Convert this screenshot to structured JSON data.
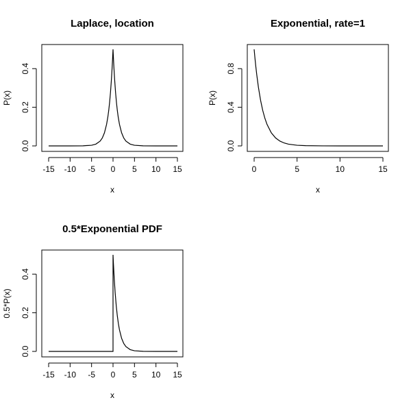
{
  "chart_data": [
    {
      "type": "line",
      "title": "Laplace, location",
      "xlabel": "x",
      "ylabel": "P(x)",
      "xlim": [
        -15,
        15
      ],
      "ylim": [
        0,
        0.5
      ],
      "xticks": [
        -15,
        -10,
        -5,
        0,
        5,
        10,
        15
      ],
      "yticks": [
        0.0,
        0.2,
        0.4
      ],
      "ytick_labels": [
        "0.0",
        "0.2",
        "0.4"
      ],
      "series": [
        {
          "x": [
            -15,
            -10,
            -7,
            -5,
            -4,
            -3,
            -2.5,
            -2,
            -1.5,
            -1.2,
            -1,
            -0.8,
            -0.6,
            -0.4,
            -0.3,
            -0.2,
            -0.1,
            0,
            0.1,
            0.2,
            0.3,
            0.4,
            0.6,
            0.8,
            1,
            1.2,
            1.5,
            2,
            2.5,
            3,
            4,
            5,
            7,
            10,
            15
          ],
          "y": [
            0.0,
            0.0,
            0.0005,
            0.0034,
            0.0092,
            0.0249,
            0.041,
            0.0677,
            0.1116,
            0.1506,
            0.1839,
            0.2247,
            0.2744,
            0.3352,
            0.3704,
            0.4094,
            0.4524,
            0.5,
            0.4524,
            0.4094,
            0.3704,
            0.3352,
            0.2744,
            0.2247,
            0.1839,
            0.1506,
            0.1116,
            0.0677,
            0.041,
            0.0249,
            0.0092,
            0.0034,
            0.0005,
            0.0,
            0.0
          ]
        }
      ]
    },
    {
      "type": "line",
      "title": "Exponential, rate=1",
      "xlabel": "x",
      "ylabel": "P(x)",
      "xlim": [
        0,
        15
      ],
      "ylim": [
        0,
        1
      ],
      "xticks": [
        0,
        5,
        10,
        15
      ],
      "yticks": [
        0.0,
        0.4,
        0.8
      ],
      "ytick_labels": [
        "0.0",
        "0.4",
        "0.8"
      ],
      "series": [
        {
          "x": [
            0,
            0.1,
            0.2,
            0.3,
            0.5,
            0.75,
            1,
            1.25,
            1.5,
            2,
            2.5,
            3,
            3.5,
            4,
            5,
            6,
            8,
            10,
            15
          ],
          "y": [
            1.0,
            0.9048,
            0.8187,
            0.7408,
            0.6065,
            0.4724,
            0.3679,
            0.2865,
            0.2231,
            0.1353,
            0.0821,
            0.0498,
            0.0302,
            0.0183,
            0.0067,
            0.0025,
            0.0003,
            0.0,
            0.0
          ]
        }
      ]
    },
    {
      "type": "line",
      "title": "0.5*Exponential PDF",
      "xlabel": "x",
      "ylabel": "0.5*P(x)",
      "xlim": [
        -15,
        15
      ],
      "ylim": [
        0,
        0.5
      ],
      "xticks": [
        -15,
        -10,
        -5,
        0,
        5,
        10,
        15
      ],
      "yticks": [
        0.0,
        0.2,
        0.4
      ],
      "ytick_labels": [
        "0.0",
        "0.2",
        "0.4"
      ],
      "series": [
        {
          "x": [
            -15,
            -10,
            -5,
            0,
            0,
            0.1,
            0.2,
            0.3,
            0.5,
            0.75,
            1,
            1.25,
            1.5,
            2,
            2.5,
            3,
            4,
            5,
            7,
            10,
            15
          ],
          "y": [
            0.0,
            0.0,
            0.0,
            0.0,
            0.5,
            0.4524,
            0.4094,
            0.3704,
            0.3033,
            0.2362,
            0.1839,
            0.1433,
            0.1116,
            0.0677,
            0.041,
            0.0249,
            0.0092,
            0.0034,
            0.0005,
            0.0,
            0.0
          ]
        }
      ]
    }
  ]
}
